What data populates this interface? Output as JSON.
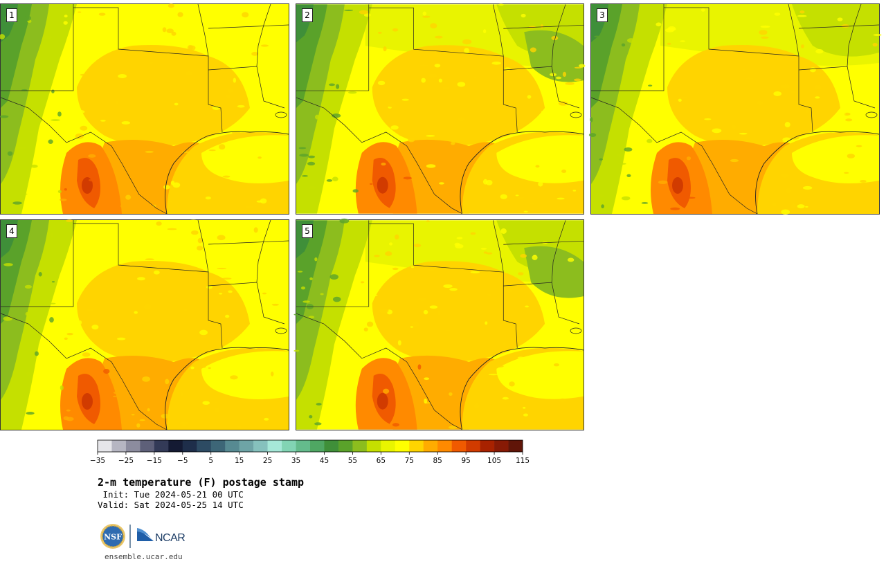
{
  "stamps": [
    {
      "label": "1",
      "variant": 0
    },
    {
      "label": "2",
      "variant": 1
    },
    {
      "label": "3",
      "variant": 2
    },
    {
      "label": "4",
      "variant": 3
    },
    {
      "label": "5",
      "variant": 4
    }
  ],
  "colorbar": {
    "colors": [
      "#e6e6ea",
      "#b6b6c2",
      "#8c8c9e",
      "#5e6079",
      "#333a57",
      "#141a33",
      "#1e2e4a",
      "#2d4b63",
      "#3d6677",
      "#578a92",
      "#6ea4a6",
      "#86c1bd",
      "#a6e8d8",
      "#82d4b4",
      "#64bb8c",
      "#4fa763",
      "#3f8f39",
      "#5aa22a",
      "#8cbd1e",
      "#c5e000",
      "#e9f400",
      "#ffff00",
      "#ffd400",
      "#ffac00",
      "#ff8a00",
      "#f05a00",
      "#d13b00",
      "#a82200",
      "#871a05",
      "#601508"
    ],
    "tick_labels": [
      "−35",
      "−25",
      "−15",
      "−5",
      "5",
      "15",
      "25",
      "35",
      "45",
      "55",
      "65",
      "75",
      "85",
      "95",
      "105",
      "115"
    ]
  },
  "title": "2-m temperature (F) postage stamp",
  "init": " Init: Tue 2024-05-21 00 UTC",
  "valid": "Valid: Sat 2024-05-25 14 UTC",
  "logos": {
    "left": "NSF",
    "right": "NCAR"
  },
  "site": "ensemble.ucar.edu"
}
